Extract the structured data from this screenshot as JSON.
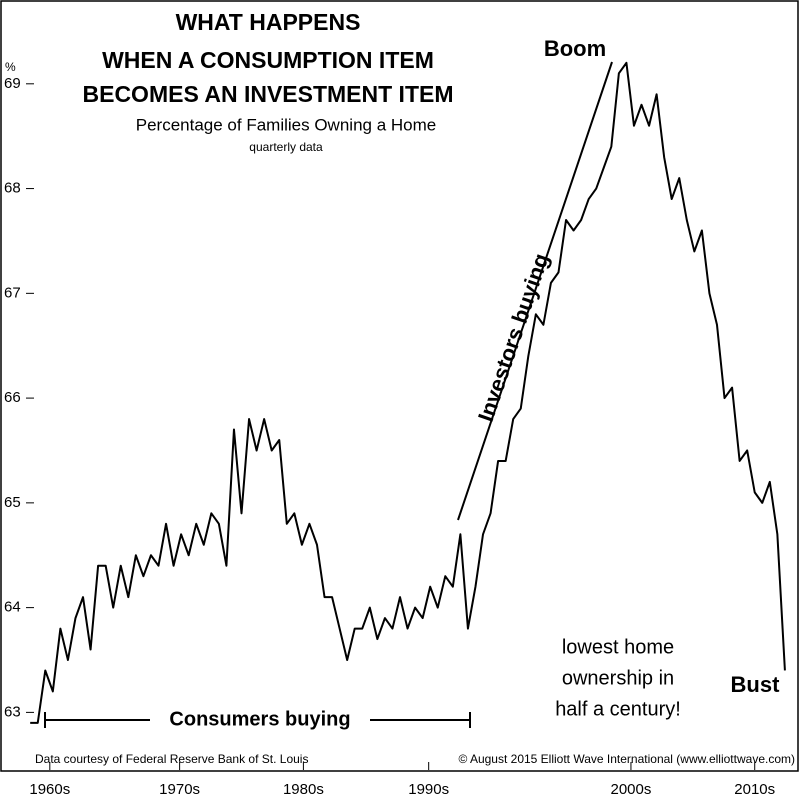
{
  "chart_data": {
    "type": "line",
    "title": [
      "WHAT HAPPENS",
      "WHEN A CONSUMPTION ITEM",
      "BECOMES AN INVESTMENT ITEM"
    ],
    "subtitle": "Percentage of Families Owning a Home",
    "subtitle2": "quarterly data",
    "y_label": "%",
    "annotations": [
      "Boom",
      "Investors buying",
      "Consumers buying",
      "Bust",
      "lowest home",
      "ownership in",
      "half a century!"
    ],
    "source": "Data courtesy of Federal Reserve Bank of St. Louis",
    "copyright": "© August 2015 Elliott Wave International (www.elliottwave.com)",
    "color": "#000000",
    "grid": false,
    "xlim": [
      1963,
      2016
    ],
    "ylim": [
      62.45,
      69.8
    ],
    "yticks": [
      63,
      64,
      65,
      66,
      67,
      68,
      69
    ],
    "xticks": [
      {
        "value": 1966.3,
        "label": "1960s"
      },
      {
        "value": 1974.9,
        "label": "1970s"
      },
      {
        "value": 1983.1,
        "label": "1980s"
      },
      {
        "value": 1991.4,
        "label": "1990s"
      },
      {
        "value": 2004.8,
        "label": "2000s"
      },
      {
        "value": 2013.0,
        "label": "2010s"
      }
    ],
    "x": [
      1965,
      1965.5,
      1966,
      1966.5,
      1967,
      1967.5,
      1968,
      1968.5,
      1969,
      1969.5,
      1970,
      1970.5,
      1971,
      1971.5,
      1972,
      1972.5,
      1973,
      1973.5,
      1974,
      1974.5,
      1975,
      1975.5,
      1976,
      1976.5,
      1977,
      1977.5,
      1978,
      1978.5,
      1979,
      1979.5,
      1980,
      1980.5,
      1981,
      1981.5,
      1982,
      1982.5,
      1983,
      1983.5,
      1984,
      1984.5,
      1985,
      1985.5,
      1986,
      1986.5,
      1987,
      1987.5,
      1988,
      1988.5,
      1989,
      1989.5,
      1990,
      1990.5,
      1991,
      1991.5,
      1992,
      1992.5,
      1993,
      1993.5,
      1994,
      1994.5,
      1995,
      1995.5,
      1996,
      1996.5,
      1997,
      1997.5,
      1998,
      1998.5,
      1999,
      1999.5,
      2000,
      2000.5,
      2001,
      2001.5,
      2002,
      2002.5,
      2003,
      2003.5,
      2004,
      2004.5,
      2005,
      2005.5,
      2006,
      2006.5,
      2007,
      2007.5,
      2008,
      2008.5,
      2009,
      2009.5,
      2010,
      2010.5,
      2011,
      2011.5,
      2012,
      2012.5,
      2013,
      2013.5,
      2014,
      2014.5,
      2015
    ],
    "values": [
      62.9,
      62.9,
      63.4,
      63.2,
      63.8,
      63.5,
      63.9,
      64.1,
      63.6,
      64.4,
      64.4,
      64.0,
      64.4,
      64.1,
      64.5,
      64.3,
      64.5,
      64.4,
      64.8,
      64.4,
      64.7,
      64.5,
      64.8,
      64.6,
      64.9,
      64.8,
      64.4,
      65.7,
      64.9,
      65.8,
      65.5,
      65.8,
      65.5,
      65.6,
      64.8,
      64.9,
      64.6,
      64.8,
      64.6,
      64.1,
      64.1,
      63.8,
      63.5,
      63.8,
      63.8,
      64.0,
      63.7,
      63.9,
      63.8,
      64.1,
      63.8,
      64.0,
      63.9,
      64.2,
      64.0,
      64.3,
      64.2,
      64.7,
      63.8,
      64.2,
      64.7,
      64.9,
      65.4,
      65.4,
      65.8,
      65.9,
      66.4,
      66.8,
      66.7,
      67.1,
      67.2,
      67.7,
      67.6,
      67.7,
      67.9,
      68.0,
      68.2,
      68.4,
      69.1,
      69.2,
      68.6,
      68.8,
      68.6,
      68.9,
      68.3,
      67.9,
      68.1,
      67.7,
      67.4,
      67.6,
      67.0,
      66.7,
      66.0,
      66.1,
      65.4,
      65.5,
      65.1,
      65.0,
      65.2,
      64.7,
      63.4
    ]
  }
}
